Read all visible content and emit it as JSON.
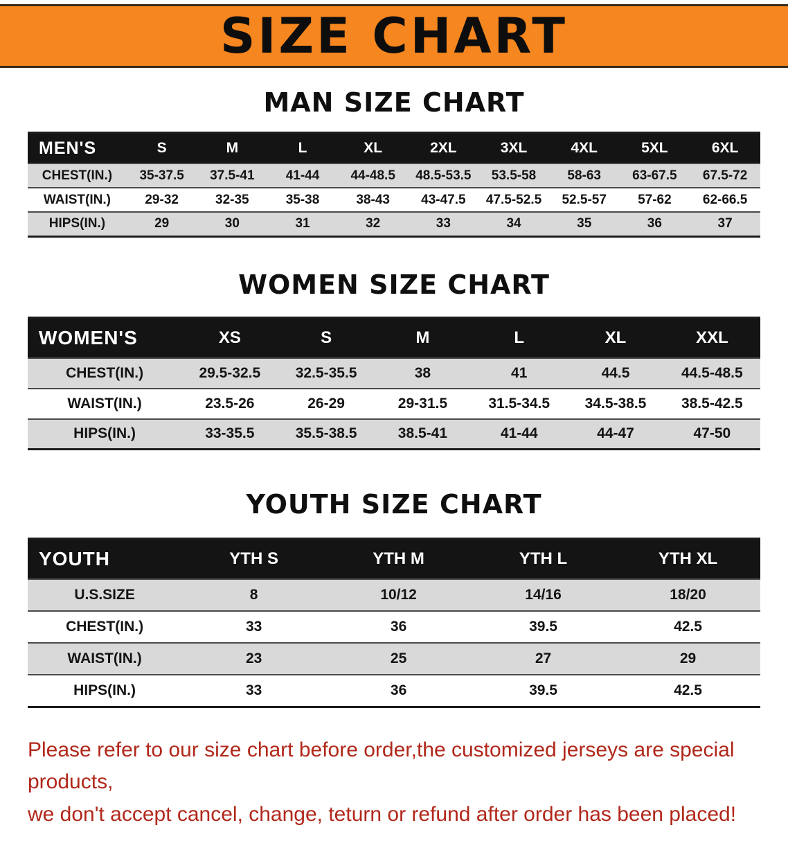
{
  "banner": {
    "title": "SIZE CHART"
  },
  "colors": {
    "banner_bg": "#f6861f",
    "table_header_bg": "#141414",
    "row_alt_bg": "#d9d9d9",
    "footer_text": "#b1281b"
  },
  "chart_data": [
    {
      "type": "table",
      "title": "MAN SIZE CHART",
      "corner_label": "MEN'S",
      "columns": [
        "S",
        "M",
        "L",
        "XL",
        "2XL",
        "3XL",
        "4XL",
        "5XL",
        "6XL"
      ],
      "rows": [
        {
          "label": "CHEST(IN.)",
          "values": [
            "35-37.5",
            "37.5-41",
            "41-44",
            "44-48.5",
            "48.5-53.5",
            "53.5-58",
            "58-63",
            "63-67.5",
            "67.5-72"
          ]
        },
        {
          "label": "WAIST(IN.)",
          "values": [
            "29-32",
            "32-35",
            "35-38",
            "38-43",
            "43-47.5",
            "47.5-52.5",
            "52.5-57",
            "57-62",
            "62-66.5"
          ]
        },
        {
          "label": "HIPS(IN.)",
          "values": [
            "29",
            "30",
            "31",
            "32",
            "33",
            "34",
            "35",
            "36",
            "37"
          ]
        }
      ]
    },
    {
      "type": "table",
      "title": "WOMEN SIZE CHART",
      "corner_label": "WOMEN'S",
      "columns": [
        "XS",
        "S",
        "M",
        "L",
        "XL",
        "XXL"
      ],
      "rows": [
        {
          "label": "CHEST(IN.)",
          "values": [
            "29.5-32.5",
            "32.5-35.5",
            "38",
            "41",
            "44.5",
            "44.5-48.5"
          ]
        },
        {
          "label": "WAIST(IN.)",
          "values": [
            "23.5-26",
            "26-29",
            "29-31.5",
            "31.5-34.5",
            "34.5-38.5",
            "38.5-42.5"
          ]
        },
        {
          "label": "HIPS(IN.)",
          "values": [
            "33-35.5",
            "35.5-38.5",
            "38.5-41",
            "41-44",
            "44-47",
            "47-50"
          ]
        }
      ]
    },
    {
      "type": "table",
      "title": "YOUTH SIZE CHART",
      "corner_label": "YOUTH",
      "columns": [
        "YTH S",
        "YTH M",
        "YTH L",
        "YTH XL"
      ],
      "rows": [
        {
          "label": "U.S.SIZE",
          "values": [
            "8",
            "10/12",
            "14/16",
            "18/20"
          ]
        },
        {
          "label": "CHEST(IN.)",
          "values": [
            "33",
            "36",
            "39.5",
            "42.5"
          ]
        },
        {
          "label": "WAIST(IN.)",
          "values": [
            "23",
            "25",
            "27",
            "29"
          ]
        },
        {
          "label": "HIPS(IN.)",
          "values": [
            "33",
            "36",
            "39.5",
            "42.5"
          ]
        }
      ]
    }
  ],
  "footer": {
    "line1": "Please refer to our size chart before order,the customized jerseys are special products,",
    "line2": "we don't accept cancel, change, teturn or refund after order has been placed!"
  }
}
